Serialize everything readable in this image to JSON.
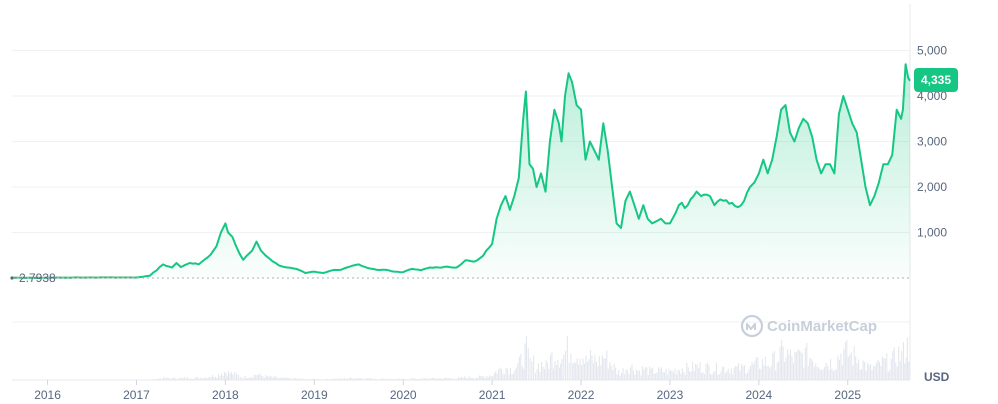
{
  "chart_data": {
    "type": "area",
    "currency_label": "USD",
    "current_price_label": "4,335",
    "start_price_label": "2.7938",
    "watermark": "CoinMarketCap",
    "x_tick_labels": [
      "2016",
      "2017",
      "2018",
      "2019",
      "2020",
      "2021",
      "2022",
      "2023",
      "2024",
      "2025"
    ],
    "x_tick_years": [
      2016,
      2017,
      2018,
      2019,
      2020,
      2021,
      2022,
      2023,
      2024,
      2025
    ],
    "y_tick_labels": [
      "1,000",
      "2,000",
      "3,000",
      "4,000",
      "5,000"
    ],
    "y_tick_values": [
      1000,
      2000,
      3000,
      4000,
      5000
    ],
    "ylim": [
      0,
      5500
    ],
    "xlim": [
      2015.6,
      2025.7
    ],
    "colors": {
      "line": "#16c784",
      "badge": "#16c784",
      "axis_text": "#58667e",
      "grid": "#eff2f5",
      "volume": "#e3e7ee"
    },
    "series": [
      {
        "x": [
          2015.6,
          2015.9,
          2016.2,
          2016.5,
          2016.8,
          2017.0,
          2017.15,
          2017.3,
          2017.4,
          2017.45,
          2017.5,
          2017.55,
          2017.6,
          2017.7,
          2017.8,
          2017.9,
          2017.95,
          2018.0,
          2018.03,
          2018.08,
          2018.12,
          2018.2,
          2018.3,
          2018.35,
          2018.4,
          2018.45,
          2018.5,
          2018.6,
          2018.7,
          2018.8,
          2018.9,
          2019.0,
          2019.1,
          2019.2,
          2019.3,
          2019.4,
          2019.5,
          2019.6,
          2019.7,
          2019.8,
          2019.9,
          2020.0,
          2020.1,
          2020.2,
          2020.3,
          2020.4,
          2020.5,
          2020.6,
          2020.65,
          2020.7,
          2020.8,
          2020.9,
          2021.0,
          2021.05,
          2021.1,
          2021.15,
          2021.2,
          2021.25,
          2021.3,
          2021.35,
          2021.38,
          2021.42,
          2021.46,
          2021.5,
          2021.55,
          2021.6,
          2021.65,
          2021.7,
          2021.75,
          2021.78,
          2021.82,
          2021.86,
          2021.9,
          2021.95,
          2022.0,
          2022.05,
          2022.1,
          2022.15,
          2022.2,
          2022.25,
          2022.3,
          2022.35,
          2022.4,
          2022.45,
          2022.5,
          2022.55,
          2022.6,
          2022.65,
          2022.7,
          2022.75,
          2022.8,
          2022.85,
          2022.9,
          2022.95,
          2023.0,
          2023.1,
          2023.2,
          2023.3,
          2023.35,
          2023.45,
          2023.5,
          2023.6,
          2023.7,
          2023.8,
          2023.9,
          2023.95,
          2024.0,
          2024.05,
          2024.1,
          2024.15,
          2024.2,
          2024.25,
          2024.3,
          2024.35,
          2024.4,
          2024.45,
          2024.5,
          2024.55,
          2024.6,
          2024.65,
          2024.7,
          2024.75,
          2024.8,
          2024.85,
          2024.9,
          2024.95,
          2025.0,
          2025.05,
          2025.1,
          2025.15,
          2025.2,
          2025.25,
          2025.3,
          2025.35,
          2025.4,
          2025.45,
          2025.5,
          2025.55,
          2025.6,
          2025.62,
          2025.65,
          2025.68,
          2025.7
        ],
        "values": [
          3,
          3,
          8,
          12,
          10,
          10,
          50,
          300,
          230,
          330,
          240,
          290,
          330,
          300,
          450,
          700,
          1000,
          1200,
          1000,
          900,
          700,
          400,
          600,
          800,
          600,
          500,
          420,
          280,
          230,
          200,
          110,
          140,
          110,
          170,
          180,
          250,
          300,
          220,
          180,
          180,
          140,
          130,
          200,
          170,
          230,
          230,
          250,
          230,
          300,
          390,
          360,
          490,
          750,
          1300,
          1600,
          1800,
          1500,
          1800,
          2200,
          3500,
          4100,
          2500,
          2400,
          2000,
          2300,
          1900,
          3000,
          3700,
          3400,
          3000,
          4000,
          4500,
          4300,
          3800,
          3700,
          2600,
          3000,
          2800,
          2600,
          3400,
          2800,
          2000,
          1200,
          1100,
          1700,
          1900,
          1600,
          1300,
          1600,
          1300,
          1200,
          1250,
          1300,
          1200,
          1200,
          1600,
          1600,
          1900,
          1800,
          1800,
          1600,
          1700,
          1650,
          1600,
          2000,
          2100,
          2300,
          2600,
          2300,
          2600,
          3100,
          3700,
          3800,
          3200,
          3000,
          3300,
          3500,
          3400,
          3100,
          2600,
          2300,
          2500,
          2500,
          2300,
          3600,
          4000,
          3700,
          3400,
          3200,
          2600,
          2000,
          1600,
          1800,
          2100,
          2500,
          2500,
          2700,
          3700,
          3500,
          3700,
          4700,
          4400,
          4335
        ]
      }
    ]
  }
}
